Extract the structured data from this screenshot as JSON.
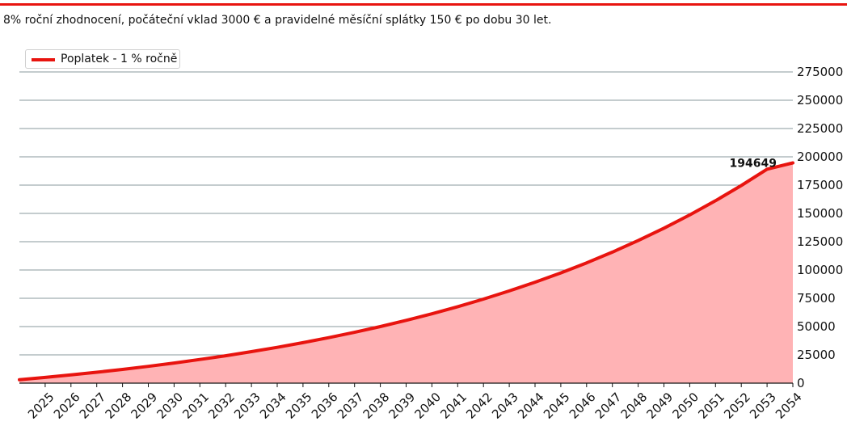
{
  "subtitle": "8% roční zhodnocení, počáteční vklad 3000 € a pravidelné měsíční splátky 150 € po dobu 30 let.",
  "colors": {
    "accent": "#e8140f",
    "fill": "#ffb3b5",
    "grid": "#8a9a9c"
  },
  "chart_data": {
    "type": "area",
    "title": "",
    "xlabel": "",
    "ylabel": "",
    "legend": {
      "placement": "top-left",
      "entries": [
        "Poplatek - 1 % ročně"
      ]
    },
    "grid": true,
    "xlim": [
      2024,
      2054
    ],
    "ylim": [
      0,
      275000
    ],
    "x_ticks": [
      "2025",
      "2026",
      "2027",
      "2028",
      "2029",
      "2030",
      "2031",
      "2032",
      "2033",
      "2034",
      "2035",
      "2036",
      "2037",
      "2038",
      "2039",
      "2040",
      "2041",
      "2042",
      "2043",
      "2044",
      "2045",
      "2046",
      "2047",
      "2048",
      "2049",
      "2050",
      "2051",
      "2052",
      "2053",
      "2054"
    ],
    "y_ticks": [
      "0",
      "25000",
      "50000",
      "75000",
      "100000",
      "125000",
      "150000",
      "175000",
      "200000",
      "225000",
      "250000",
      "275000"
    ],
    "series": [
      {
        "name": "Poplatek - 1 % ročně",
        "x": [
          2024,
          2025,
          2026,
          2027,
          2028,
          2029,
          2030,
          2031,
          2032,
          2033,
          2034,
          2035,
          2036,
          2037,
          2038,
          2039,
          2040,
          2041,
          2042,
          2043,
          2044,
          2045,
          2046,
          2047,
          2048,
          2049,
          2050,
          2051,
          2052,
          2053,
          2054
        ],
        "values": [
          3000,
          5054,
          7257,
          9619,
          12151,
          14865,
          17775,
          20894,
          24238,
          27824,
          31668,
          35789,
          40208,
          44945,
          50024,
          55469,
          61307,
          67566,
          74276,
          81470,
          89183,
          97452,
          106317,
          115821,
          126011,
          136935,
          148647,
          161204,
          174666,
          189100,
          194649
        ]
      }
    ],
    "annotations": [
      {
        "x": 2054,
        "y": 194649,
        "text": "194649"
      }
    ]
  }
}
